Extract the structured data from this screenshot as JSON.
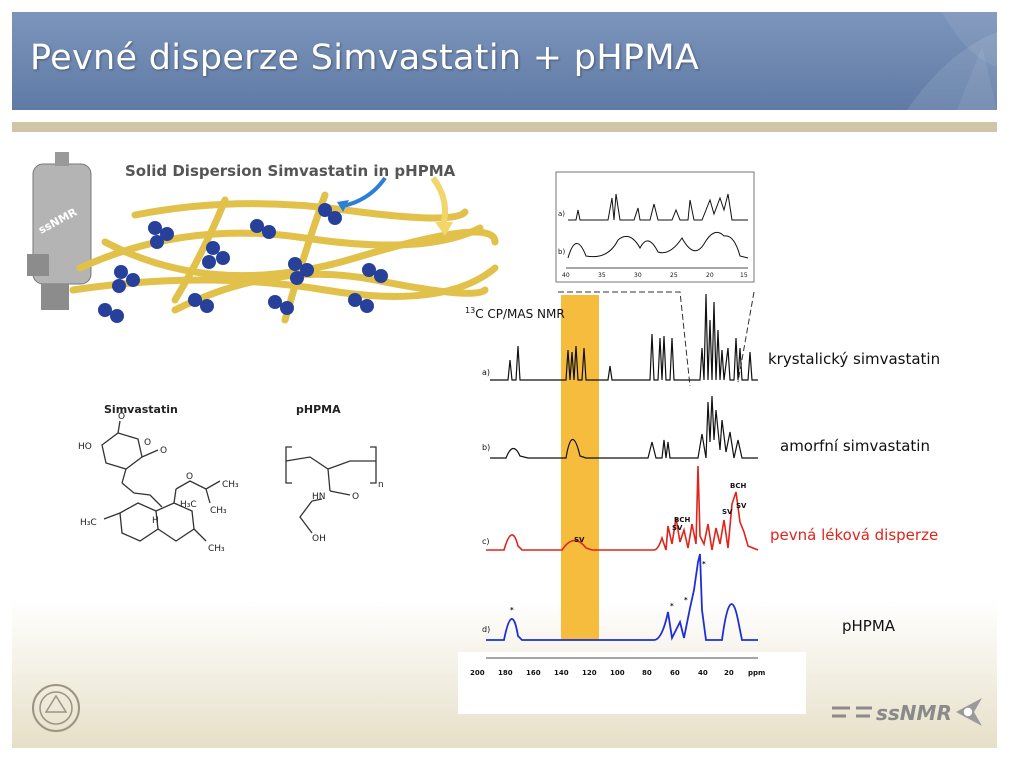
{
  "slide": {
    "title": "Pevné disperze Simvastatin + pHPMA",
    "colors": {
      "title_bar": "#6b86b0",
      "rule": "#cfc6a9",
      "highlight": "#f5b529",
      "red": "#e0241b",
      "blue": "#1f2fd6"
    }
  },
  "illustration": {
    "caption": "Solid Dispersion Simvastatin in pHPMA",
    "rotor_label": "ssNMR"
  },
  "structures": {
    "simvastatin": {
      "name": "Simvastatin",
      "atoms": {
        "ho": "HO",
        "o1": "O",
        "o2": "O",
        "o3": "O",
        "o4": "O",
        "h": "H",
        "h3c1": "H₃C",
        "h3c2": "H₃C",
        "ch3a": "CH₃",
        "ch3b": "CH₃",
        "ch3c": "CH₃"
      }
    },
    "phpma": {
      "name": "pHPMA",
      "atoms": {
        "nh": "HN",
        "o": "O",
        "oh": "OH",
        "n": "n"
      }
    }
  },
  "nmr": {
    "label_13c": "13",
    "title": "C  CP/MAS  NMR",
    "trace_letters": [
      "a)",
      "b)",
      "c)",
      "d)"
    ],
    "inset_letters": [
      "a)",
      "b)"
    ],
    "x_ticks": [
      "200",
      "180",
      "160",
      "140",
      "120",
      "100",
      "80",
      "60",
      "40",
      "20",
      "ppm"
    ],
    "inset_ticks": [
      "40",
      "35",
      "30",
      "25",
      "20",
      "15"
    ],
    "traces": [
      {
        "label": "krystalický simvastatin",
        "color": "#111111"
      },
      {
        "label": "amorfní simvastatin",
        "color": "#111111"
      },
      {
        "label": "pevná léková disperze",
        "color": "#e0241b"
      },
      {
        "label": "pHPMA",
        "color": "#1f2fd6"
      }
    ],
    "annotations": {
      "sv": "SV",
      "bch": "BCH",
      "star": "*"
    }
  },
  "logos": {
    "right_text": "ssNMR"
  }
}
